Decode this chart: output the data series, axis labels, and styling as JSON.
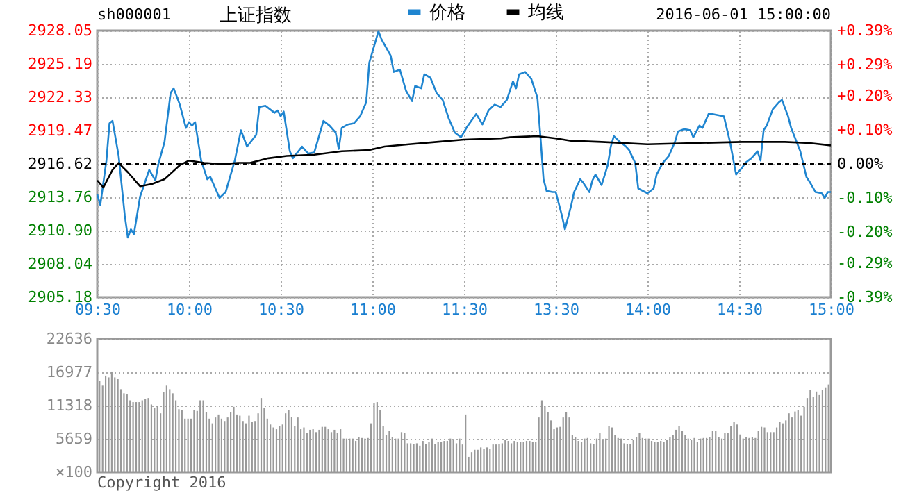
{
  "chart_data": [
    {
      "type": "line",
      "title": "上证指数",
      "subtitle": "sh000001",
      "annotations": [
        "2016-06-01 15:00:00"
      ],
      "legend": "top",
      "grid": true,
      "marker": "none",
      "categories": [
        "09:30",
        null,
        null,
        null,
        null,
        null,
        null,
        null,
        null,
        null,
        null,
        null,
        null,
        null,
        null,
        null,
        null,
        null,
        null,
        null,
        null,
        null,
        null,
        null,
        null,
        null,
        null,
        null,
        null,
        null,
        "10:00",
        null,
        null,
        null,
        null,
        null,
        null,
        null,
        null,
        null,
        null,
        null,
        null,
        null,
        null,
        null,
        null,
        null,
        null,
        null,
        null,
        null,
        null,
        null,
        null,
        null,
        null,
        null,
        null,
        null,
        "10:30",
        null,
        null,
        null,
        null,
        null,
        null,
        null,
        null,
        null,
        null,
        null,
        null,
        null,
        null,
        null,
        null,
        null,
        null,
        null,
        null,
        null,
        null,
        null,
        null,
        null,
        null,
        null,
        null,
        null,
        "11:00",
        null,
        null,
        null,
        null,
        null,
        null,
        null,
        null,
        null,
        null,
        null,
        null,
        null,
        null,
        null,
        null,
        null,
        null,
        null,
        null,
        null,
        null,
        null,
        null,
        null,
        null,
        null,
        null,
        null,
        "11:30",
        null,
        null,
        null,
        null,
        null,
        null,
        null,
        null,
        null,
        null,
        null,
        null,
        null,
        null,
        null,
        null,
        null,
        null,
        null,
        null,
        null,
        null,
        null,
        null,
        null,
        null,
        null,
        null,
        null,
        "13:30",
        null,
        null,
        null,
        null,
        null,
        null,
        null,
        null,
        null,
        null,
        null,
        null,
        null,
        null,
        null,
        null,
        null,
        null,
        null,
        null,
        null,
        null,
        null,
        null,
        null,
        null,
        null,
        null,
        null,
        "14:00",
        null,
        null,
        null,
        null,
        null,
        null,
        null,
        null,
        null,
        null,
        null,
        null,
        null,
        null,
        null,
        null,
        null,
        null,
        null,
        null,
        null,
        null,
        null,
        null,
        null,
        null,
        null,
        null,
        null,
        "14:30",
        null,
        null,
        null,
        null,
        null,
        null,
        null,
        null,
        null,
        null,
        null,
        null,
        null,
        null,
        null,
        null,
        null,
        null,
        null,
        null,
        null,
        null,
        null,
        null,
        null,
        null,
        null,
        null,
        null,
        "15:00"
      ],
      "ylim": [
        2905.18,
        2928.05
      ],
      "yticks": [
        2905.18,
        2908.04,
        {
          "value": 2910.9,
          "label": "2910.90"
        },
        2913.76,
        2916.62,
        2919.47,
        2922.33,
        2925.19,
        2928.05
      ],
      "y2lim": [
        -0.39,
        0.39
      ],
      "y2ticks": [
        {
          "value": -0.39,
          "label": "-0.39%"
        },
        {
          "value": -0.29,
          "label": "-0.29%"
        },
        {
          "value": -0.2,
          "label": "-0.20%"
        },
        {
          "value": -0.1,
          "label": "-0.10%"
        },
        {
          "value": 0,
          "label": "0.00%"
        },
        {
          "value": 0.1,
          "label": "+0.10%"
        },
        {
          "value": 0.2,
          "label": "+0.20%"
        },
        {
          "value": 0.29,
          "label": "+0.29%"
        },
        {
          "value": 0.39,
          "label": "+0.39%"
        }
      ],
      "ref_lines": [
        {
          "axis": "y2",
          "value": 0,
          "color": "#000000",
          "line_style": "dashed"
        }
      ],
      "series": [
        {
          "name": "价格",
          "color": "#1f85d0",
          "values": [
            2914.0,
            2913.1,
            null,
            2916.9,
            2920.1,
            2920.3,
            null,
            2917.3,
            null,
            2912.2,
            2910.3,
            2911.0,
            2910.6,
            null,
            2913.8,
            null,
            null,
            2916.1,
            null,
            2915.2,
            2916.6,
            null,
            2918.5,
            null,
            2922.7,
            2923.1,
            null,
            2921.7,
            null,
            2919.7,
            2920.2,
            2919.9,
            2920.2,
            null,
            2916.9,
            null,
            2915.3,
            2915.5,
            null,
            null,
            2913.7,
            null,
            2914.2,
            null,
            null,
            2916.9,
            null,
            2919.5,
            null,
            2918.1,
            null,
            null,
            2919.1,
            2921.5,
            null,
            2921.6,
            null,
            null,
            2921.0,
            2921.2,
            2920.7,
            2921.1,
            null,
            2917.7,
            2917.1,
            null,
            null,
            2918.1,
            null,
            2917.5,
            null,
            2917.6,
            null,
            null,
            2920.3,
            null,
            2919.9,
            null,
            2919.3,
            2917.9,
            2919.7,
            null,
            2920.0,
            null,
            2920.1,
            null,
            2920.7,
            null,
            2921.9,
            2925.3,
            null,
            null,
            2928.0,
            2927.3,
            null,
            null,
            2925.9,
            2924.5,
            null,
            2924.7,
            null,
            2922.9,
            null,
            2922.0,
            2923.3,
            null,
            2923.1,
            2924.3,
            null,
            2924.0,
            null,
            2922.7,
            null,
            2922.1,
            null,
            2920.5,
            null,
            2919.3,
            null,
            2918.9,
            null,
            2919.8,
            null,
            null,
            2920.9,
            null,
            2920.0,
            null,
            2921.2,
            null,
            2921.7,
            null,
            2921.5,
            null,
            2922.1,
            null,
            2923.7,
            2923.1,
            2924.3,
            null,
            2924.5,
            null,
            2923.9,
            null,
            2922.3,
            2918.9,
            2915.3,
            2914.3,
            null,
            2914.2,
            2914.2,
            null,
            2912.2,
            2911.0,
            null,
            2913.0,
            2914.2,
            null,
            2915.3,
            2915.0,
            null,
            2914.2,
            2915.2,
            2915.7,
            null,
            2914.8,
            null,
            2916.5,
            2918.1,
            2919.0,
            null,
            2918.5,
            null,
            2918.1,
            2917.8,
            null,
            2916.7,
            2914.5,
            null,
            null,
            2914.1,
            null,
            2914.5,
            2915.7,
            null,
            2916.7,
            null,
            2917.3,
            null,
            2918.5,
            2919.4,
            null,
            2919.6,
            null,
            2919.5,
            2918.9,
            null,
            2919.9,
            2919.7,
            null,
            2920.9,
            2920.9,
            null,
            2920.8,
            null,
            2920.7,
            null,
            2918.5,
            null,
            2915.7,
            null,
            2916.3,
            2916.7,
            null,
            2917.1,
            null,
            2917.7,
            2916.9,
            2919.5,
            2919.9,
            null,
            2921.3,
            null,
            2921.9,
            2922.1,
            null,
            2920.7,
            2919.7,
            null,
            null,
            2917.7,
            null,
            2915.5,
            2915.1,
            null,
            2914.2,
            null,
            2914.1,
            2913.7,
            2914.2,
            2914.2
          ]
        },
        {
          "name": "均线",
          "color": "#000000",
          "values": [
            2915.2,
            null,
            2914.6,
            null,
            null,
            2916.1,
            null,
            2916.7,
            null,
            null,
            2915.9,
            null,
            null,
            null,
            2914.7,
            null,
            null,
            null,
            2914.9,
            null,
            null,
            null,
            2915.3,
            null,
            null,
            null,
            null,
            2916.5,
            null,
            null,
            2916.9,
            null,
            null,
            null,
            null,
            2916.7,
            null,
            null,
            null,
            null,
            null,
            2916.6,
            null,
            null,
            null,
            null,
            2916.7,
            null,
            null,
            null,
            2916.7,
            null,
            null,
            null,
            null,
            null,
            2917.1,
            null,
            null,
            null,
            null,
            null,
            2917.3,
            null,
            null,
            null,
            null,
            null,
            null,
            null,
            null,
            2917.4,
            null,
            null,
            null,
            null,
            null,
            null,
            null,
            null,
            2917.7,
            null,
            null,
            null,
            null,
            null,
            null,
            null,
            null,
            2917.8,
            null,
            null,
            null,
            null,
            2918.1,
            null,
            null,
            null,
            null,
            null,
            null,
            null,
            2918.3,
            null,
            null,
            null,
            null,
            null,
            null,
            null,
            null,
            2918.5,
            null,
            null,
            null,
            null,
            null,
            null,
            null,
            null,
            2918.7,
            null,
            null,
            null,
            null,
            null,
            null,
            null,
            null,
            null,
            null,
            null,
            2918.8,
            null,
            null,
            2918.9,
            null,
            null,
            null,
            null,
            null,
            null,
            null,
            null,
            2919.0,
            null,
            null,
            null,
            null,
            null,
            2918.8,
            null,
            null,
            null,
            null,
            2918.6,
            null,
            null,
            null,
            null,
            null,
            null,
            null,
            null,
            null,
            2918.5,
            null,
            null,
            null,
            null,
            null,
            null,
            null,
            null,
            null,
            null,
            null,
            null,
            null,
            null,
            2918.3,
            null,
            null,
            null,
            null,
            null,
            null,
            null,
            null,
            null,
            null,
            null,
            null,
            null,
            null,
            2918.4,
            null,
            null,
            null,
            null,
            null,
            null,
            null,
            null,
            null,
            null,
            null,
            null,
            null,
            null,
            null,
            2918.5,
            null,
            null,
            null,
            null,
            null,
            null,
            null,
            null,
            null,
            null,
            null,
            null,
            null,
            2918.5,
            null,
            null,
            null,
            null,
            null,
            null,
            null,
            2918.4,
            null,
            null,
            null,
            null,
            null,
            null,
            2918.2
          ]
        }
      ]
    },
    {
      "type": "bar",
      "ylabel": "×100",
      "annotations": [
        "Copyright 2016"
      ],
      "grid": "y",
      "tick_labels": "y",
      "color": "#999999",
      "categories": [
        null,
        null,
        null,
        null,
        null,
        null,
        null,
        null,
        null,
        null,
        null,
        null,
        null,
        null,
        null,
        null,
        null,
        null,
        null,
        null,
        null,
        null,
        null,
        null,
        null,
        null,
        null,
        null,
        null,
        null,
        null,
        null,
        null,
        null,
        null,
        null,
        null,
        null,
        null,
        null,
        null,
        null,
        null,
        null,
        null,
        null,
        null,
        null,
        null,
        null,
        null,
        null,
        null,
        null,
        null,
        null,
        null,
        null,
        null,
        null,
        null,
        null,
        null,
        null,
        null,
        null,
        null,
        null,
        null,
        null,
        null,
        null,
        null,
        null,
        null,
        null,
        null,
        null,
        null,
        null,
        null,
        null,
        null,
        null,
        null,
        null,
        null,
        null,
        null,
        null,
        null,
        null,
        null,
        null,
        null,
        null,
        null,
        null,
        null,
        null,
        null,
        null,
        null,
        null,
        null,
        null,
        null,
        null,
        null,
        null,
        null,
        null,
        null,
        null,
        null,
        null,
        null,
        null,
        null,
        null,
        null,
        null,
        null,
        null,
        null,
        null,
        null,
        null,
        null,
        null,
        null,
        null,
        null,
        null,
        null,
        null,
        null,
        null,
        null,
        null,
        null,
        null,
        null,
        null,
        null,
        null,
        null,
        null,
        null,
        null,
        null,
        null,
        null,
        null,
        null,
        null,
        null,
        null,
        null,
        null,
        null,
        null,
        null,
        null,
        null,
        null,
        null,
        null,
        null,
        null,
        null,
        null,
        null,
        null,
        null,
        null,
        null,
        null,
        null,
        null,
        null,
        null,
        null,
        null,
        null,
        null,
        null,
        null,
        null,
        null,
        null,
        null,
        null,
        null,
        null,
        null,
        null,
        null,
        null,
        null,
        null,
        null,
        null,
        null,
        null,
        null,
        null,
        null,
        null,
        null,
        null,
        null,
        null,
        null,
        null,
        null,
        null,
        null,
        null,
        null,
        null,
        null,
        null,
        null,
        null,
        null,
        null,
        null,
        null,
        null,
        null,
        null,
        null,
        null,
        null,
        null,
        null,
        null,
        null,
        null
      ],
      "ylim": [
        0,
        22636
      ],
      "yticks": [
        5659,
        11318,
        16977,
        22636
      ],
      "values": [
        15500,
        14700,
        16400,
        16100,
        17100,
        16100,
        15800,
        14100,
        13400,
        13200,
        12200,
        11900,
        11900,
        11900,
        12200,
        12500,
        12600,
        11500,
        10900,
        11300,
        10000,
        13600,
        14700,
        14100,
        13400,
        12200,
        10700,
        10600,
        9100,
        9100,
        9100,
        10600,
        10400,
        12200,
        12200,
        10200,
        9100,
        8300,
        9300,
        9800,
        9100,
        8700,
        9300,
        10200,
        11100,
        9800,
        9600,
        8700,
        8300,
        9600,
        8500,
        8700,
        10000,
        12600,
        10900,
        9100,
        8100,
        7600,
        7300,
        7900,
        8100,
        10000,
        10600,
        9400,
        7900,
        9300,
        7300,
        7600,
        6600,
        7200,
        7300,
        6800,
        7200,
        7700,
        7700,
        7300,
        6800,
        7200,
        6600,
        7300,
        5700,
        5700,
        5700,
        5700,
        5300,
        6000,
        5800,
        5700,
        5800,
        8300,
        11700,
        11900,
        10600,
        7900,
        6300,
        7000,
        6000,
        5700,
        5700,
        6800,
        6600,
        4900,
        4900,
        4800,
        4900,
        4500,
        5300,
        4800,
        5100,
        5700,
        4800,
        5100,
        5100,
        5300,
        5300,
        5700,
        5500,
        4900,
        5700,
        4700,
        9800,
        2600,
        3400,
        3800,
        3800,
        4200,
        4000,
        4200,
        4000,
        4700,
        4700,
        4800,
        4900,
        5500,
        5300,
        4900,
        5300,
        5100,
        5100,
        5100,
        5300,
        5300,
        5100,
        5100,
        9300,
        12200,
        11300,
        10200,
        8800,
        7300,
        7600,
        7700,
        9300,
        10200,
        9300,
        6300,
        6000,
        5300,
        5100,
        5700,
        5800,
        4900,
        4800,
        5700,
        6600,
        5500,
        5700,
        7800,
        7600,
        6300,
        5800,
        5700,
        4900,
        4800,
        4800,
        5500,
        6000,
        6600,
        5800,
        5700,
        5700,
        5300,
        5100,
        5100,
        5300,
        5100,
        5500,
        6000,
        6300,
        7200,
        7800,
        7000,
        6300,
        5700,
        5500,
        5800,
        5100,
        5700,
        5800,
        5800,
        6000,
        7000,
        7000,
        6000,
        5700,
        6600,
        6600,
        7800,
        8500,
        8100,
        6400,
        5700,
        6000,
        5800,
        6000,
        5800,
        7000,
        7700,
        7600,
        6800,
        6800,
        6800,
        7600,
        8500,
        8300,
        8800,
        10000,
        9300,
        10300,
        10600,
        9600,
        11100,
        12600,
        14000,
        12800,
        13700,
        13100,
        14000,
        14300,
        14900
      ]
    }
  ]
}
